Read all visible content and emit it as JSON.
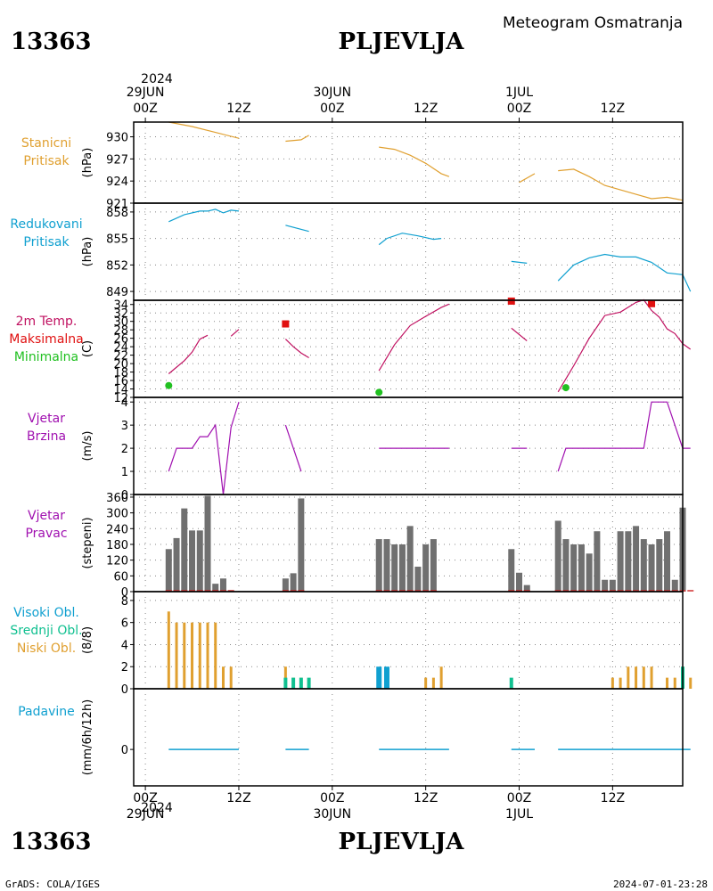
{
  "header": {
    "station_id": "13363",
    "station_name": "PLJEVLJA",
    "title": "Meteogram Osmatranja"
  },
  "footer": {
    "left": "GrADS: COLA/IGES",
    "right": "2024-07-01-23:28"
  },
  "time_axis": {
    "top_year": "2024",
    "ticks": [
      {
        "hour": 0,
        "line1": "29JUN",
        "line2": "00Z"
      },
      {
        "hour": 12,
        "line1": "",
        "line2": "12Z"
      },
      {
        "hour": 24,
        "line1": "30JUN",
        "line2": "00Z"
      },
      {
        "hour": 36,
        "line1": "",
        "line2": "12Z"
      },
      {
        "hour": 48,
        "line1": "1JUL",
        "line2": "00Z"
      },
      {
        "hour": 60,
        "line1": "",
        "line2": "12Z"
      }
    ],
    "bottom_year": "2024",
    "range_hours": [
      -1.5,
      69
    ]
  },
  "colors": {
    "pressure": "#e0a030",
    "reduced": "#10a0d0",
    "temp": "#c01060",
    "tmax": "#e01010",
    "tmin": "#20c020",
    "wind": "#a010b0",
    "winddir_bar": "#707070",
    "winddir_base": "#d03030",
    "cloud_high": "#10a0d0",
    "cloud_mid": "#10c090",
    "cloud_low": "#e0a030",
    "precip": "#10a0d0"
  },
  "panels": {
    "pressure": {
      "labels": [
        "Stanicni",
        "Pritisak"
      ],
      "unit": "(hPa)"
    },
    "reduced": {
      "labels": [
        "Redukovani",
        "Pritisak"
      ],
      "unit": "(hPa)"
    },
    "temp": {
      "labels": [
        "2m Temp.",
        "Maksimalna",
        "Minimalna"
      ],
      "unit": "(C)"
    },
    "wind": {
      "labels": [
        "Vjetar",
        "Brzina"
      ],
      "unit": "(m/s)"
    },
    "winddir": {
      "labels": [
        "Vjetar",
        "Pravac"
      ],
      "unit": "(stepeni)"
    },
    "clouds": {
      "labels": [
        "Visoki Obl.",
        "Srednji Obl.",
        "Niski Obl."
      ],
      "unit": "(8/8)"
    },
    "precip": {
      "labels": [
        "Padavine"
      ],
      "unit": "(mm/6h/12h)"
    }
  },
  "chart_data": [
    {
      "type": "line",
      "name": "pressure",
      "ylim": [
        921,
        932
      ],
      "yticks": [
        921,
        924,
        927,
        930
      ],
      "segments": [
        [
          [
            3,
            932
          ],
          [
            6,
            931.4
          ],
          [
            9,
            930.6
          ],
          [
            12,
            929.8
          ]
        ],
        [
          [
            18,
            929.4
          ],
          [
            20,
            929.6
          ],
          [
            21,
            930.2
          ]
        ],
        [
          [
            30,
            928.6
          ],
          [
            32,
            928.3
          ],
          [
            34,
            927.5
          ],
          [
            36,
            926.4
          ],
          [
            38,
            925
          ],
          [
            39,
            924.6
          ]
        ],
        [
          [
            48,
            923.8
          ],
          [
            50,
            925
          ]
        ],
        [
          [
            53,
            925.4
          ],
          [
            55,
            925.6
          ],
          [
            57,
            924.6
          ],
          [
            59,
            923.4
          ],
          [
            61,
            922.8
          ],
          [
            63,
            922.2
          ],
          [
            65,
            921.6
          ],
          [
            67,
            921.8
          ],
          [
            69,
            921.4
          ]
        ]
      ]
    },
    {
      "type": "line",
      "name": "reduced_pressure",
      "ylim": [
        848,
        859
      ],
      "yticks": [
        849,
        852,
        855,
        858
      ],
      "segments": [
        [
          [
            3,
            856.9
          ],
          [
            5,
            857.7
          ],
          [
            7,
            858.1
          ],
          [
            8,
            858.1
          ],
          [
            9,
            858.3
          ],
          [
            10,
            857.9
          ],
          [
            11,
            858.2
          ],
          [
            12,
            858.1
          ]
        ],
        [
          [
            18,
            856.5
          ],
          [
            21,
            855.8
          ]
        ],
        [
          [
            30,
            854.3
          ],
          [
            31,
            855
          ],
          [
            33,
            855.6
          ],
          [
            35,
            855.3
          ],
          [
            37,
            854.9
          ],
          [
            38,
            855
          ]
        ],
        [
          [
            47,
            852.4
          ],
          [
            49,
            852.2
          ]
        ],
        [
          [
            53,
            850.2
          ],
          [
            55,
            852
          ],
          [
            57,
            852.8
          ],
          [
            59,
            853.2
          ],
          [
            61,
            852.9
          ],
          [
            63,
            852.9
          ],
          [
            65,
            852.3
          ],
          [
            67,
            851.1
          ],
          [
            69,
            850.9
          ],
          [
            70,
            849
          ]
        ]
      ]
    },
    {
      "type": "line",
      "name": "temp_2m",
      "ylim": [
        12,
        35
      ],
      "yticks": [
        12,
        14,
        16,
        18,
        20,
        22,
        24,
        26,
        28,
        30,
        32,
        34
      ],
      "segments": [
        [
          [
            3,
            17.6
          ],
          [
            5,
            20.7
          ],
          [
            6,
            22.7
          ],
          [
            7,
            25.8
          ],
          [
            8,
            26.7
          ]
        ],
        [
          [
            11,
            26.5
          ],
          [
            12,
            28.1
          ]
        ],
        [
          [
            18,
            25.8
          ],
          [
            19,
            24
          ],
          [
            20,
            22.5
          ],
          [
            21,
            21.4
          ]
        ],
        [
          [
            30,
            18.3
          ],
          [
            32,
            24.5
          ],
          [
            34,
            29
          ],
          [
            36,
            31.2
          ],
          [
            38,
            33.3
          ],
          [
            39,
            34.1
          ]
        ],
        [
          [
            47,
            28.4
          ],
          [
            49,
            25.4
          ]
        ],
        [
          [
            53,
            13.3
          ],
          [
            55,
            19.5
          ],
          [
            57,
            26
          ],
          [
            59,
            31.4
          ],
          [
            61,
            32.2
          ],
          [
            63,
            34.5
          ],
          [
            64,
            35.1
          ],
          [
            65,
            32.6
          ],
          [
            66,
            31
          ],
          [
            67,
            28.2
          ],
          [
            68,
            27.1
          ],
          [
            69,
            24.7
          ],
          [
            70,
            23.4
          ]
        ]
      ],
      "tmax": [
        [
          18,
          29.4
        ],
        [
          47,
          34.8
        ],
        [
          65,
          34.2
        ]
      ],
      "tmin": [
        [
          3,
          14.8
        ],
        [
          30,
          13.2
        ],
        [
          54,
          14.3
        ]
      ]
    },
    {
      "type": "line",
      "name": "wind_speed",
      "ylim": [
        0,
        4.2
      ],
      "yticks": [
        0,
        1,
        2,
        3,
        4
      ],
      "segments": [
        [
          [
            3,
            1
          ],
          [
            4,
            2
          ],
          [
            6,
            2
          ],
          [
            7,
            2.5
          ],
          [
            8,
            2.5
          ],
          [
            9,
            3
          ],
          [
            10,
            0
          ],
          [
            11,
            2.9
          ],
          [
            12,
            4
          ]
        ],
        [
          [
            18,
            3
          ],
          [
            20,
            1
          ]
        ],
        [
          [
            30,
            2
          ],
          [
            39,
            2
          ]
        ],
        [
          [
            47,
            2
          ],
          [
            49,
            2
          ]
        ],
        [
          [
            53,
            1
          ],
          [
            54,
            2
          ],
          [
            64,
            2
          ],
          [
            65,
            4
          ],
          [
            67,
            4
          ],
          [
            69,
            2
          ],
          [
            70,
            2
          ]
        ]
      ]
    },
    {
      "type": "bar",
      "name": "wind_direction",
      "ylim": [
        0,
        370
      ],
      "yticks": [
        0,
        60,
        120,
        180,
        240,
        300,
        360
      ],
      "x": [
        3,
        4,
        5,
        6,
        7,
        8,
        9,
        10,
        11,
        18,
        19,
        20,
        30,
        31,
        32,
        33,
        34,
        35,
        36,
        37,
        47,
        48,
        49,
        53,
        54,
        55,
        56,
        57,
        58,
        59,
        60,
        61,
        62,
        63,
        64,
        65,
        66,
        67,
        68,
        69,
        70
      ],
      "values": [
        162,
        204,
        317,
        233,
        233,
        365,
        30,
        50,
        0,
        50,
        70,
        355,
        200,
        200,
        180,
        180,
        250,
        95,
        180,
        200,
        162,
        72,
        25,
        270,
        200,
        180,
        180,
        145,
        230,
        45,
        45,
        230,
        230,
        250,
        200,
        180,
        200,
        230,
        45,
        320,
        0
      ]
    },
    {
      "type": "bar",
      "name": "clouds",
      "ylim": [
        0,
        8.8
      ],
      "yticks": [
        0,
        2,
        4,
        6,
        8
      ],
      "series": [
        {
          "name": "low",
          "x": [
            3,
            4,
            5,
            6,
            7,
            8,
            9,
            10,
            11,
            18,
            19,
            20,
            30,
            31,
            32,
            33,
            34,
            36,
            37,
            38,
            47,
            48,
            49,
            55,
            56,
            57,
            58,
            59,
            60,
            61,
            62,
            63,
            64,
            65,
            67,
            68,
            69,
            70
          ],
          "values": [
            7,
            6,
            6,
            6,
            6,
            6,
            6,
            2,
            2,
            2,
            1,
            1,
            0,
            0,
            0,
            0,
            0,
            1,
            1,
            2,
            0,
            0,
            0,
            0,
            0,
            0,
            0,
            0,
            1,
            1,
            2,
            2,
            2,
            2,
            1,
            1,
            2,
            1
          ]
        },
        {
          "name": "mid",
          "x": [
            18,
            19,
            20,
            21,
            47,
            69
          ],
          "values": [
            1,
            1,
            1,
            1,
            1,
            2
          ]
        },
        {
          "name": "high",
          "x": [
            30,
            31
          ],
          "values": [
            2,
            2
          ]
        }
      ]
    },
    {
      "type": "bar",
      "name": "precipitation",
      "ylim": [
        -3,
        5
      ],
      "yticks": [
        0
      ],
      "x": [
        3,
        6,
        9,
        12,
        18,
        21,
        30,
        33,
        36,
        39,
        47,
        50,
        53,
        56,
        59,
        62,
        65,
        68,
        70
      ],
      "values": [
        0,
        0,
        0,
        0,
        0,
        0,
        0,
        0,
        0,
        0,
        0,
        0,
        0,
        0,
        0,
        0,
        0,
        0,
        0
      ]
    }
  ]
}
